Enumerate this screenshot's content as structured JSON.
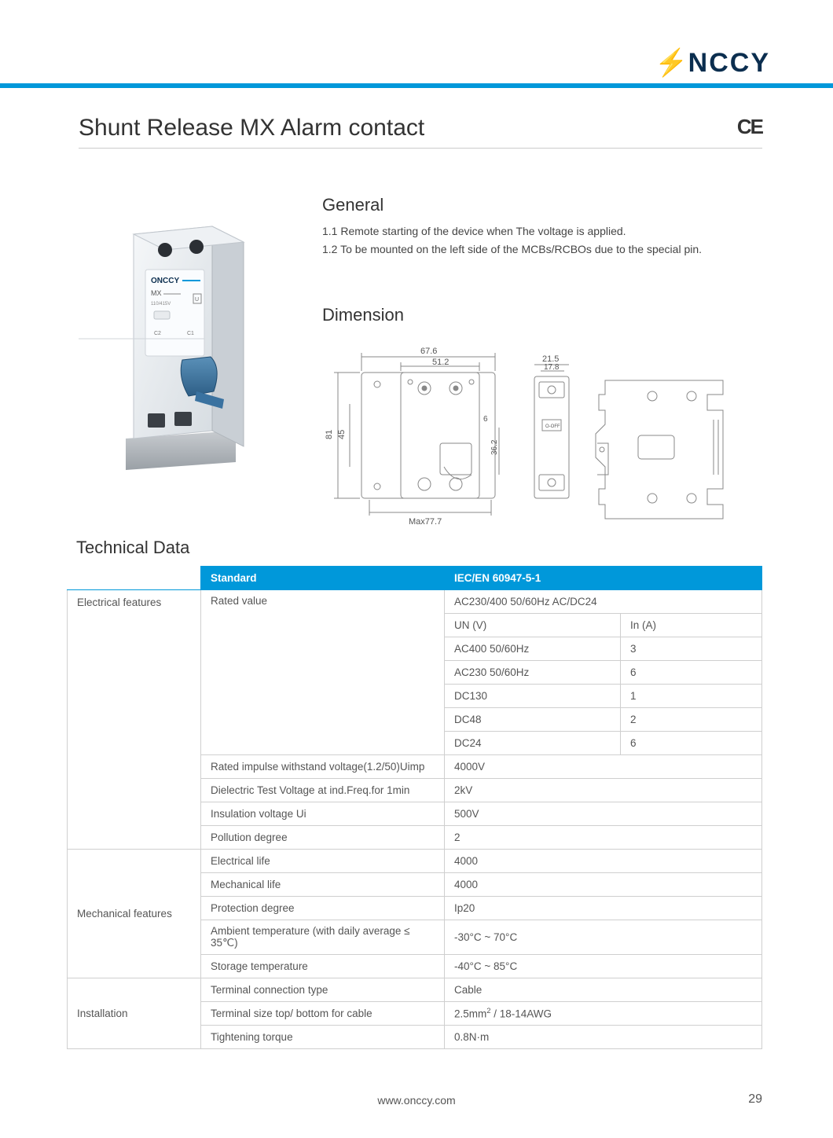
{
  "brand": {
    "name": "NCCY",
    "bolt_color": "#7ac143",
    "text_color": "#0b2e4f"
  },
  "header_bar_color": "#0098da",
  "page": {
    "title": "Shunt Release MX Alarm contact",
    "ce": "CE",
    "footer_url": "www.onccy.com",
    "number": "29"
  },
  "general": {
    "heading": "General",
    "items": [
      "1.1 Remote starting of the device when The voltage is applied.",
      "1.2 To be mounted on the left side of the MCBs/RCBOs due to the special pin."
    ]
  },
  "dimension": {
    "heading": "Dimension",
    "labels": {
      "top_outer": "67.6",
      "top_inner": "51.2",
      "left_outer": "81",
      "left_inner": "45",
      "right_small_w": "21.5",
      "right_small_h": "17.8",
      "mid_h": "36.2",
      "small6": "6",
      "bottom": "Max77.7"
    },
    "colors": {
      "line": "#888",
      "fill": "#f7f7f7"
    }
  },
  "product_label": {
    "brand": "ONCCY",
    "model": "MX",
    "sub": "110/415V",
    "terminals": "C2  C1",
    "u": "U"
  },
  "technical": {
    "heading": "Technical Data",
    "header_bg": "#0098da",
    "border_color": "#cfcfcf",
    "hdr": {
      "col2": "Standard",
      "col3": "IEC/EN 60947-5-1"
    },
    "groups": [
      {
        "label": "Electrical features",
        "rows": [
          {
            "c2": "Rated value",
            "c3": "AC230/400 50/60Hz     AC/DC24",
            "rowspan2": 6
          },
          {
            "c3": "UN (V)",
            "c4": "In (A)"
          },
          {
            "c3": "AC400 50/60Hz",
            "c4": "3"
          },
          {
            "c3": "AC230 50/60Hz",
            "c4": "6"
          },
          {
            "c3": "DC130",
            "c4": "1"
          },
          {
            "c3": "DC48",
            "c4": "2"
          },
          {
            "c3": "DC24",
            "c4": "6"
          },
          {
            "c2": "Rated impulse withstand voltage(1.2/50)Uimp",
            "c3": "4000V"
          },
          {
            "c2": "Dielectric Test Voltage at ind.Freq.for 1min",
            "c3": "2kV"
          },
          {
            "c2": "Insulation voltage Ui",
            "c3": "500V"
          },
          {
            "c2": "Pollution degree",
            "c3": "2"
          }
        ]
      },
      {
        "label": "Mechanical features",
        "rows": [
          {
            "c2": "Electrical life",
            "c3": "4000"
          },
          {
            "c2": "Mechanical life",
            "c3": "4000"
          },
          {
            "c2": "Protection degree",
            "c3": "Ip20"
          },
          {
            "c2": "Ambient temperature (with daily average ≤ 35℃)",
            "c3": "-30°C ~ 70°C"
          },
          {
            "c2": "Storage temperature",
            "c3": "-40°C ~ 85°C"
          }
        ]
      },
      {
        "label": "Installation",
        "rows": [
          {
            "c2": "Terminal connection type",
            "c3": "Cable"
          },
          {
            "c2": "Terminal size top/ bottom for cable",
            "c3_html": "2.5mm<sup>2</sup>   / 18-14AWG"
          },
          {
            "c2": "Tightening torque",
            "c3": "0.8N·m"
          }
        ]
      }
    ]
  }
}
